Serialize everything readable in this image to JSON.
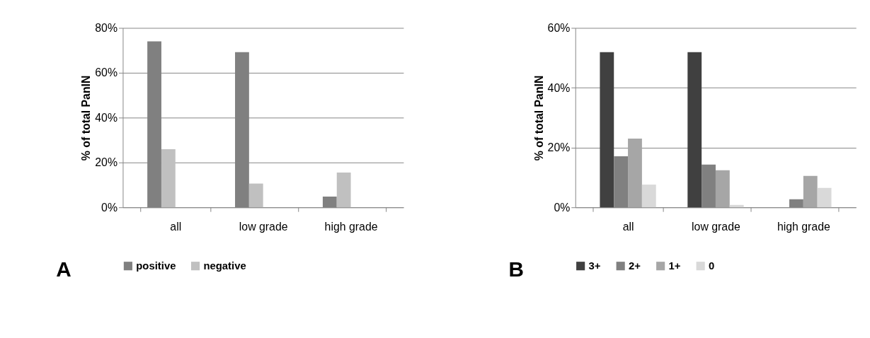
{
  "chart_data": [
    {
      "type": "bar",
      "ylabel": "% of total PanIN",
      "categories": [
        "all",
        "low grade",
        "high grade"
      ],
      "series": [
        {
          "name": "positive",
          "color": "#808080",
          "values": [
            74.0,
            69.2,
            4.8
          ]
        },
        {
          "name": "negative",
          "color": "#c0c0c0",
          "values": [
            25.9,
            10.6,
            15.5
          ]
        }
      ],
      "ylim": [
        0,
        80
      ],
      "yticks": [
        {
          "value": 0,
          "label": "0%"
        },
        {
          "value": 20,
          "label": "20%"
        },
        {
          "value": 40,
          "label": "40%"
        },
        {
          "value": 60,
          "label": "60%"
        },
        {
          "value": 80,
          "label": "80%"
        }
      ],
      "grid": "y",
      "legend": "bottom",
      "annotations": [
        "A"
      ]
    },
    {
      "type": "bar",
      "ylabel": "% of total PanIN",
      "categories": [
        "all",
        "low grade",
        "high grade"
      ],
      "series": [
        {
          "name": "3+",
          "color": "#404040",
          "values": [
            51.9,
            51.9,
            0
          ]
        },
        {
          "name": "2+",
          "color": "#808080",
          "values": [
            17.1,
            14.3,
            2.7
          ]
        },
        {
          "name": "1+",
          "color": "#a6a6a6",
          "values": [
            23.0,
            12.4,
            10.5
          ]
        },
        {
          "name": "0",
          "color": "#d9d9d9",
          "values": [
            7.6,
            0.8,
            6.5
          ]
        }
      ],
      "ylim": [
        0,
        60
      ],
      "yticks": [
        {
          "value": 0,
          "label": "0%"
        },
        {
          "value": 20,
          "label": "20%"
        },
        {
          "value": 40,
          "label": "40%"
        },
        {
          "value": 60,
          "label": "60%"
        }
      ],
      "grid": "y",
      "legend": "bottom",
      "annotations": [
        "B"
      ]
    }
  ]
}
